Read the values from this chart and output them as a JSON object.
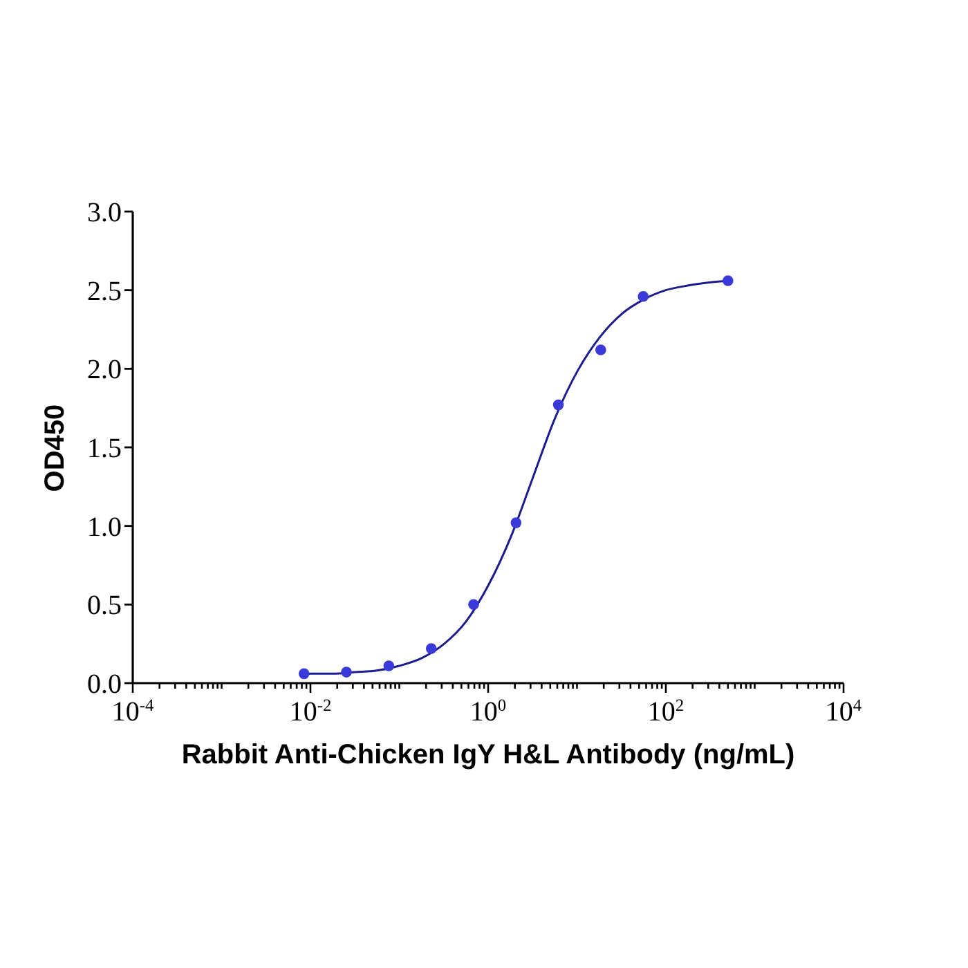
{
  "chart_data": {
    "type": "scatter",
    "xlabel": "Rabbit Anti-Chicken IgY H&L Antibody (ng/mL)",
    "ylabel": "OD450",
    "log": "x",
    "xlim": [
      0.0001,
      10000
    ],
    "xticks": [
      {
        "value": 0.0001,
        "label": "10$^{-4}$"
      },
      {
        "value": 0.0002,
        "label": null
      },
      {
        "value": 0.0003,
        "label": null
      },
      {
        "value": 0.0004,
        "label": null
      },
      {
        "value": 0.0005,
        "label": null
      },
      {
        "value": 0.0006,
        "label": null
      },
      {
        "value": 0.0007,
        "label": null
      },
      {
        "value": 0.0008,
        "label": null
      },
      {
        "value": 0.0009,
        "label": null
      },
      {
        "value": 0.001,
        "label": null
      },
      {
        "value": 0.002,
        "label": null
      },
      {
        "value": 0.003,
        "label": null
      },
      {
        "value": 0.004,
        "label": null
      },
      {
        "value": 0.005,
        "label": null
      },
      {
        "value": 0.006,
        "label": null
      },
      {
        "value": 0.007,
        "label": null
      },
      {
        "value": 0.008,
        "label": null
      },
      {
        "value": 0.009,
        "label": null
      },
      {
        "value": 0.01,
        "label": "10$^{-2}$"
      },
      {
        "value": 0.02,
        "label": null
      },
      {
        "value": 0.03,
        "label": null
      },
      {
        "value": 0.04,
        "label": null
      },
      {
        "value": 0.05,
        "label": null
      },
      {
        "value": 0.06,
        "label": null
      },
      {
        "value": 0.07,
        "label": null
      },
      {
        "value": 0.08,
        "label": null
      },
      {
        "value": 0.09,
        "label": null
      },
      {
        "value": 0.1,
        "label": null
      },
      {
        "value": 0.2,
        "label": null
      },
      {
        "value": 0.3,
        "label": null
      },
      {
        "value": 0.4,
        "label": null
      },
      {
        "value": 0.5,
        "label": null
      },
      {
        "value": 0.6,
        "label": null
      },
      {
        "value": 0.7,
        "label": null
      },
      {
        "value": 0.8,
        "label": null
      },
      {
        "value": 0.9,
        "label": null
      },
      {
        "value": 1,
        "label": "10$^{0}$"
      },
      {
        "value": 2,
        "label": null
      },
      {
        "value": 3,
        "label": null
      },
      {
        "value": 4,
        "label": null
      },
      {
        "value": 5,
        "label": null
      },
      {
        "value": 6,
        "label": null
      },
      {
        "value": 7,
        "label": null
      },
      {
        "value": 8,
        "label": null
      },
      {
        "value": 9,
        "label": null
      },
      {
        "value": 10,
        "label": null
      },
      {
        "value": 20,
        "label": null
      },
      {
        "value": 30,
        "label": null
      },
      {
        "value": 40,
        "label": null
      },
      {
        "value": 50,
        "label": null
      },
      {
        "value": 60,
        "label": null
      },
      {
        "value": 70,
        "label": null
      },
      {
        "value": 80,
        "label": null
      },
      {
        "value": 90,
        "label": null
      },
      {
        "value": 100,
        "label": "10$^{2}$"
      },
      {
        "value": 200,
        "label": null
      },
      {
        "value": 300,
        "label": null
      },
      {
        "value": 400,
        "label": null
      },
      {
        "value": 500,
        "label": null
      },
      {
        "value": 600,
        "label": null
      },
      {
        "value": 700,
        "label": null
      },
      {
        "value": 800,
        "label": null
      },
      {
        "value": 900,
        "label": null
      },
      {
        "value": 1000,
        "label": null
      },
      {
        "value": 2000,
        "label": null
      },
      {
        "value": 3000,
        "label": null
      },
      {
        "value": 4000,
        "label": null
      },
      {
        "value": 5000,
        "label": null
      },
      {
        "value": 6000,
        "label": null
      },
      {
        "value": 7000,
        "label": null
      },
      {
        "value": 8000,
        "label": null
      },
      {
        "value": 9000,
        "label": null
      },
      {
        "value": 10000,
        "label": "10$^{4}$"
      }
    ],
    "ylim": [
      0,
      3
    ],
    "yticks": [
      {
        "value": 0,
        "label": "0.0"
      },
      0.5,
      {
        "value": 1,
        "label": "1.0"
      },
      1.5,
      {
        "value": 2,
        "label": "2.0"
      },
      2.5,
      {
        "value": 3,
        "label": "3.0"
      }
    ],
    "series": [
      {
        "type": "line",
        "color": "#1c1c8e",
        "marker": "none",
        "x": [
          0.00847,
          0.01,
          0.018,
          0.032,
          0.056,
          0.1,
          0.18,
          0.32,
          0.56,
          1,
          1.8,
          3.2,
          5.6,
          10,
          18,
          32,
          56,
          100,
          180,
          320,
          500
        ],
        "values": [
          0.05,
          0.06,
          0.06,
          0.07,
          0.08,
          0.11,
          0.16,
          0.25,
          0.39,
          0.62,
          0.93,
          1.31,
          1.68,
          1.98,
          2.2,
          2.35,
          2.44,
          2.5,
          2.53,
          2.55,
          2.56
        ]
      },
      {
        "color": "#3a3ad8",
        "marker": "circle",
        "x": [
          0.00847,
          0.0254,
          0.0762,
          0.229,
          0.686,
          2.06,
          6.17,
          18.5,
          55.6,
          500
        ],
        "values": [
          0.06,
          0.07,
          0.11,
          0.22,
          0.5,
          1.02,
          1.77,
          2.12,
          2.46,
          2.56
        ]
      }
    ]
  }
}
